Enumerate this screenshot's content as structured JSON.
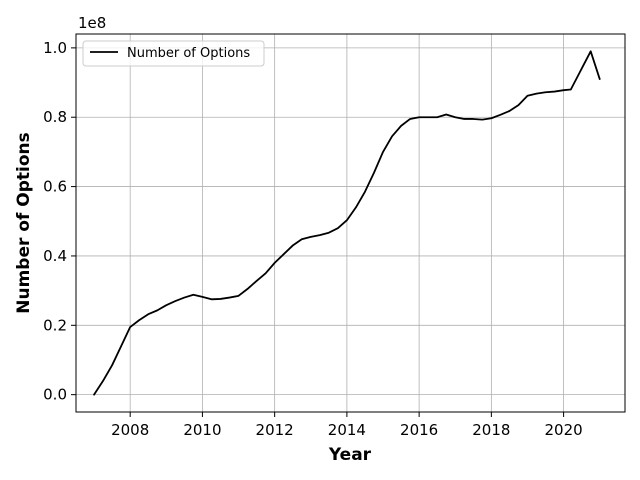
{
  "chart_data": {
    "type": "line",
    "title": "",
    "xlabel": "Year",
    "ylabel": "Number of Options",
    "y_offset_text": "1e8",
    "xlim": [
      2006.5,
      2021.7
    ],
    "ylim": [
      -0.05,
      1.04
    ],
    "y_scale_note": "values in units of 1e8",
    "xticks": [
      2008,
      2010,
      2012,
      2014,
      2016,
      2018,
      2020
    ],
    "xtick_labels": [
      "2008",
      "2010",
      "2012",
      "2014",
      "2016",
      "2018",
      "2020"
    ],
    "yticks": [
      0.0,
      0.2,
      0.4,
      0.6,
      0.8,
      1.0
    ],
    "ytick_labels": [
      "0.0",
      "0.2",
      "0.4",
      "0.6",
      "0.8",
      "1.0"
    ],
    "grid": true,
    "legend": {
      "placement": "upper-left",
      "entries": [
        "Number of Options"
      ]
    },
    "series": [
      {
        "name": "Number of Options",
        "color": "#000000",
        "x": [
          2007.0,
          2007.25,
          2007.5,
          2007.75,
          2008.0,
          2008.25,
          2008.5,
          2008.75,
          2009.0,
          2009.25,
          2009.5,
          2009.75,
          2010.0,
          2010.25,
          2010.5,
          2010.75,
          2011.0,
          2011.25,
          2011.5,
          2011.75,
          2012.0,
          2012.25,
          2012.5,
          2012.75,
          2013.0,
          2013.25,
          2013.5,
          2013.75,
          2014.0,
          2014.25,
          2014.5,
          2014.75,
          2015.0,
          2015.25,
          2015.5,
          2015.75,
          2016.0,
          2016.25,
          2016.5,
          2016.75,
          2017.0,
          2017.25,
          2017.5,
          2017.75,
          2018.0,
          2018.25,
          2018.5,
          2018.75,
          2019.0,
          2019.25,
          2019.5,
          2019.75,
          2020.0,
          2020.2,
          2020.4,
          2020.55,
          2020.75,
          2021.0
        ],
        "values": [
          0.0,
          0.04,
          0.085,
          0.14,
          0.195,
          0.215,
          0.232,
          0.243,
          0.258,
          0.27,
          0.28,
          0.288,
          0.282,
          0.275,
          0.276,
          0.28,
          0.285,
          0.305,
          0.328,
          0.35,
          0.38,
          0.405,
          0.43,
          0.448,
          0.455,
          0.46,
          0.467,
          0.48,
          0.503,
          0.54,
          0.585,
          0.64,
          0.7,
          0.745,
          0.775,
          0.795,
          0.8,
          0.8,
          0.8,
          0.808,
          0.8,
          0.795,
          0.795,
          0.793,
          0.797,
          0.807,
          0.818,
          0.835,
          0.862,
          0.868,
          0.872,
          0.874,
          0.878,
          0.88,
          0.92,
          0.95,
          0.99,
          0.91
        ]
      }
    ]
  }
}
